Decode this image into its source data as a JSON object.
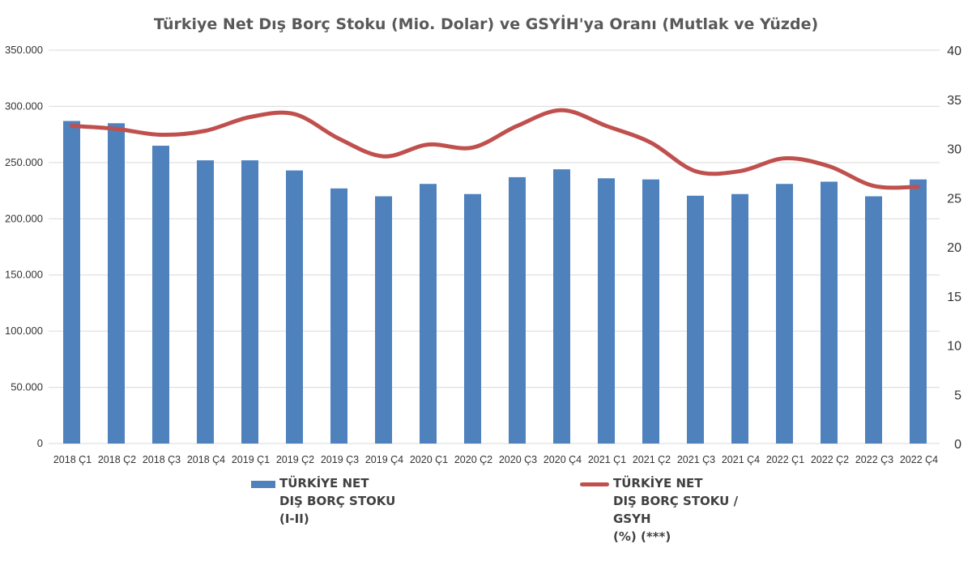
{
  "chart_data": {
    "type": "bar+line",
    "title": "Türkiye Net Dış Borç Stoku (Mio. Dolar) ve GSYİH'ya Oranı (Mutlak ve Yüzde)",
    "categories": [
      "2018 Ç1",
      "2018 Ç2",
      "2018 Ç3",
      "2018 Ç4",
      "2019 Ç1",
      "2019 Ç2",
      "2019 Ç3",
      "2019 Ç4",
      "2020 Ç1",
      "2020 Ç2",
      "2020 Ç3",
      "2020 Ç4",
      "2021 Ç1",
      "2021 Ç2",
      "2021 Ç3",
      "2021 Ç4",
      "2022 Ç1",
      "2022 Ç2",
      "2022 Ç3",
      "2022 Ç4"
    ],
    "y_left": {
      "ticks": [
        "0",
        "50.000",
        "100.000",
        "150.000",
        "200.000",
        "250.000",
        "300.000",
        "350.000"
      ],
      "ylim": [
        0,
        350000
      ]
    },
    "y_right": {
      "ticks": [
        "0",
        "5",
        "10",
        "15",
        "20",
        "25",
        "30",
        "35",
        "40"
      ],
      "ylim": [
        0,
        40
      ]
    },
    "grid": true,
    "legend_placement": "bottom",
    "series": [
      {
        "name": "TÜRKİYE NET\nDIŞ BORÇ STOKU\n(I-II)",
        "type": "bar",
        "axis": "left",
        "color": "#4F81BD",
        "values": [
          287000,
          285000,
          265000,
          252000,
          252000,
          243000,
          227000,
          220000,
          231000,
          222000,
          237000,
          244000,
          236000,
          235000,
          220500,
          222000,
          231000,
          233000,
          220000,
          235000
        ]
      },
      {
        "name": "TÜRKİYE NET\nDIŞ BORÇ STOKU /\nGSYH\n(%) (***)",
        "type": "line",
        "axis": "right",
        "color": "#C0504D",
        "values": [
          32.3,
          32.0,
          31.4,
          31.8,
          33.2,
          33.5,
          31.0,
          29.2,
          30.4,
          30.1,
          32.3,
          33.9,
          32.3,
          30.6,
          27.7,
          27.7,
          29.0,
          28.2,
          26.2,
          26.1
        ]
      }
    ]
  }
}
